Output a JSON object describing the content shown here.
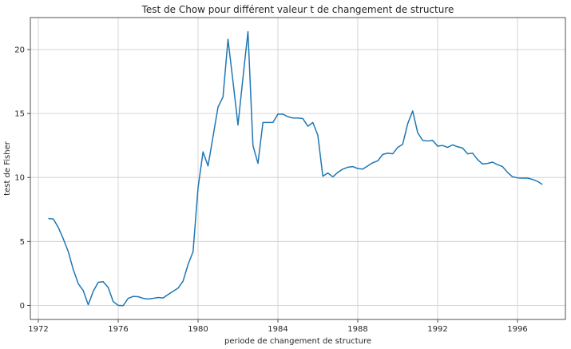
{
  "chart_data": {
    "type": "line",
    "title": "Test de Chow pour différent valeur t de changement de structure",
    "xlabel": "periode de changement de structure",
    "ylabel": "test de Fisher",
    "xlim": [
      1971.6,
      1998.4
    ],
    "ylim": [
      -1.1,
      22.5
    ],
    "x_ticks": [
      1972,
      1976,
      1980,
      1984,
      1988,
      1992,
      1996
    ],
    "y_ticks": [
      0,
      5,
      10,
      15,
      20
    ],
    "grid": true,
    "line_color": "#1f77b4",
    "series": [
      {
        "points": [
          [
            1972.5,
            6.8
          ],
          [
            1972.75,
            6.75
          ],
          [
            1973.0,
            6.1
          ],
          [
            1973.25,
            5.2
          ],
          [
            1973.5,
            4.2
          ],
          [
            1973.75,
            2.8
          ],
          [
            1974.0,
            1.7
          ],
          [
            1974.25,
            1.15
          ],
          [
            1974.5,
            0.05
          ],
          [
            1974.75,
            1.1
          ],
          [
            1975.0,
            1.8
          ],
          [
            1975.25,
            1.85
          ],
          [
            1975.5,
            1.4
          ],
          [
            1975.75,
            0.3
          ],
          [
            1976.0,
            0.0
          ],
          [
            1976.25,
            -0.02
          ],
          [
            1976.5,
            0.55
          ],
          [
            1976.75,
            0.7
          ],
          [
            1977.0,
            0.68
          ],
          [
            1977.25,
            0.55
          ],
          [
            1977.5,
            0.5
          ],
          [
            1977.75,
            0.55
          ],
          [
            1978.0,
            0.62
          ],
          [
            1978.25,
            0.58
          ],
          [
            1978.5,
            0.85
          ],
          [
            1978.75,
            1.1
          ],
          [
            1979.0,
            1.35
          ],
          [
            1979.25,
            1.9
          ],
          [
            1979.5,
            3.2
          ],
          [
            1979.75,
            4.2
          ],
          [
            1980.0,
            9.2
          ],
          [
            1980.25,
            12.0
          ],
          [
            1980.5,
            10.9
          ],
          [
            1980.75,
            13.2
          ],
          [
            1981.0,
            15.5
          ],
          [
            1981.25,
            16.3
          ],
          [
            1981.5,
            20.8
          ],
          [
            1981.75,
            17.5
          ],
          [
            1982.0,
            14.1
          ],
          [
            1982.25,
            17.8
          ],
          [
            1982.5,
            21.4
          ],
          [
            1982.75,
            12.5
          ],
          [
            1983.0,
            11.1
          ],
          [
            1983.25,
            14.3
          ],
          [
            1983.5,
            14.3
          ],
          [
            1983.75,
            14.3
          ],
          [
            1984.0,
            14.95
          ],
          [
            1984.25,
            14.95
          ],
          [
            1984.5,
            14.75
          ],
          [
            1984.75,
            14.65
          ],
          [
            1985.0,
            14.65
          ],
          [
            1985.25,
            14.6
          ],
          [
            1985.5,
            14.0
          ],
          [
            1985.75,
            14.3
          ],
          [
            1986.0,
            13.3
          ],
          [
            1986.25,
            10.1
          ],
          [
            1986.5,
            10.35
          ],
          [
            1986.75,
            10.05
          ],
          [
            1987.0,
            10.4
          ],
          [
            1987.25,
            10.65
          ],
          [
            1987.5,
            10.8
          ],
          [
            1987.75,
            10.85
          ],
          [
            1988.0,
            10.7
          ],
          [
            1988.25,
            10.65
          ],
          [
            1988.5,
            10.9
          ],
          [
            1988.75,
            11.15
          ],
          [
            1989.0,
            11.3
          ],
          [
            1989.25,
            11.8
          ],
          [
            1989.5,
            11.9
          ],
          [
            1989.75,
            11.85
          ],
          [
            1990.0,
            12.35
          ],
          [
            1990.25,
            12.6
          ],
          [
            1990.5,
            14.2
          ],
          [
            1990.75,
            15.2
          ],
          [
            1991.0,
            13.5
          ],
          [
            1991.25,
            12.9
          ],
          [
            1991.5,
            12.85
          ],
          [
            1991.75,
            12.9
          ],
          [
            1992.0,
            12.45
          ],
          [
            1992.25,
            12.5
          ],
          [
            1992.5,
            12.35
          ],
          [
            1992.75,
            12.55
          ],
          [
            1993.0,
            12.4
          ],
          [
            1993.25,
            12.3
          ],
          [
            1993.5,
            11.85
          ],
          [
            1993.75,
            11.9
          ],
          [
            1994.0,
            11.4
          ],
          [
            1994.25,
            11.05
          ],
          [
            1994.5,
            11.1
          ],
          [
            1994.75,
            11.2
          ],
          [
            1995.0,
            11.0
          ],
          [
            1995.25,
            10.85
          ],
          [
            1995.5,
            10.4
          ],
          [
            1995.75,
            10.05
          ],
          [
            1996.0,
            9.97
          ],
          [
            1996.25,
            9.95
          ],
          [
            1996.5,
            9.95
          ],
          [
            1996.75,
            9.85
          ],
          [
            1997.0,
            9.7
          ],
          [
            1997.25,
            9.45
          ]
        ]
      }
    ]
  }
}
